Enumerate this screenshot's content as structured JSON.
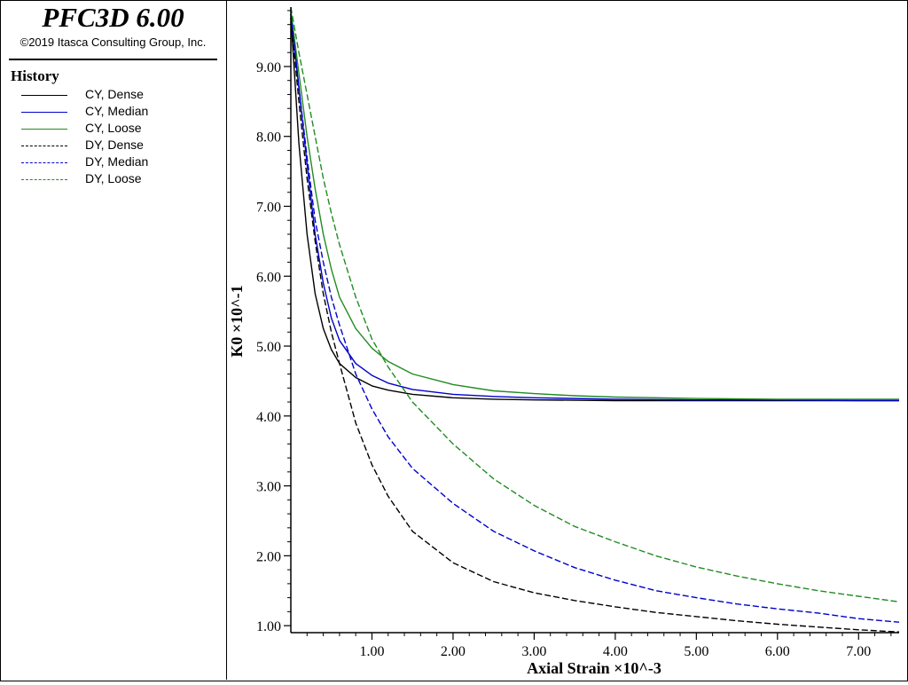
{
  "app": {
    "title": "PFC3D 6.00",
    "copyright": "©2019 Itasca Consulting Group, Inc."
  },
  "legend": {
    "heading": "History",
    "items": [
      {
        "label": "CY, Dense",
        "color": "#000000",
        "style": "solid"
      },
      {
        "label": "CY, Median",
        "color": "#0000cc",
        "style": "solid"
      },
      {
        "label": "CY, Loose",
        "color": "#228b22",
        "style": "solid"
      },
      {
        "label": "DY, Dense",
        "color": "#000000",
        "style": "dashed"
      },
      {
        "label": "DY, Median",
        "color": "#0000cc",
        "style": "dashed"
      },
      {
        "label": "DY, Loose",
        "color": "#228b22",
        "style": "dashed"
      }
    ]
  },
  "chart_data": {
    "type": "line",
    "title": "",
    "xlabel": "Axial Strain ×10^-3",
    "ylabel": "K0 ×10^-1",
    "xlim": [
      0.0,
      7.5
    ],
    "ylim": [
      0.9,
      9.85
    ],
    "xticks": [
      1,
      2,
      3,
      4,
      5,
      6,
      7
    ],
    "xtick_labels": [
      "1.00",
      "2.00",
      "3.00",
      "4.00",
      "5.00",
      "6.00",
      "7.00"
    ],
    "yticks": [
      1,
      2,
      3,
      4,
      5,
      6,
      7,
      8,
      9
    ],
    "ytick_labels": [
      "1.00",
      "2.00",
      "3.00",
      "4.00",
      "5.00",
      "6.00",
      "7.00",
      "8.00",
      "9.00"
    ],
    "grid": false,
    "legend_position": "left-panel",
    "series": [
      {
        "name": "CY, Dense",
        "color": "#000000",
        "dash": "solid",
        "x": [
          0.0,
          0.05,
          0.1,
          0.2,
          0.3,
          0.4,
          0.5,
          0.6,
          0.8,
          1.0,
          1.2,
          1.5,
          2.0,
          2.5,
          3.0,
          4.0,
          5.0,
          6.0,
          7.0,
          7.5
        ],
        "y": [
          9.7,
          8.8,
          7.9,
          6.6,
          5.75,
          5.25,
          4.95,
          4.75,
          4.55,
          4.43,
          4.37,
          4.31,
          4.26,
          4.24,
          4.23,
          4.22,
          4.22,
          4.22,
          4.22,
          4.22
        ]
      },
      {
        "name": "CY, Median",
        "color": "#0000cc",
        "dash": "solid",
        "x": [
          0.0,
          0.1,
          0.2,
          0.3,
          0.4,
          0.5,
          0.6,
          0.8,
          1.0,
          1.2,
          1.5,
          2.0,
          2.5,
          3.0,
          4.0,
          5.0,
          6.0,
          7.0,
          7.5
        ],
        "y": [
          9.75,
          8.7,
          7.6,
          6.6,
          5.9,
          5.4,
          5.08,
          4.75,
          4.58,
          4.47,
          4.38,
          4.31,
          4.28,
          4.26,
          4.24,
          4.23,
          4.23,
          4.22,
          4.22
        ]
      },
      {
        "name": "CY, Loose",
        "color": "#228b22",
        "dash": "solid",
        "x": [
          0.0,
          0.1,
          0.2,
          0.3,
          0.4,
          0.5,
          0.6,
          0.8,
          1.0,
          1.2,
          1.5,
          2.0,
          2.5,
          3.0,
          3.5,
          4.0,
          5.0,
          6.0,
          7.0,
          7.5
        ],
        "y": [
          9.8,
          8.9,
          8.0,
          7.25,
          6.6,
          6.1,
          5.7,
          5.25,
          4.97,
          4.78,
          4.6,
          4.45,
          4.36,
          4.32,
          4.29,
          4.27,
          4.25,
          4.24,
          4.24,
          4.24
        ]
      },
      {
        "name": "DY, Dense",
        "color": "#000000",
        "dash": "dashed",
        "x": [
          0.0,
          0.1,
          0.2,
          0.3,
          0.4,
          0.5,
          0.6,
          0.8,
          1.0,
          1.2,
          1.5,
          2.0,
          2.5,
          3.0,
          3.5,
          4.0,
          4.5,
          5.0,
          5.5,
          6.0,
          6.5,
          7.0,
          7.5
        ],
        "y": [
          9.7,
          8.5,
          7.4,
          6.5,
          5.75,
          5.2,
          4.75,
          3.9,
          3.3,
          2.85,
          2.35,
          1.9,
          1.63,
          1.47,
          1.36,
          1.27,
          1.19,
          1.13,
          1.07,
          1.02,
          0.98,
          0.94,
          0.91
        ]
      },
      {
        "name": "DY, Median",
        "color": "#0000cc",
        "dash": "dashed",
        "x": [
          0.0,
          0.1,
          0.2,
          0.3,
          0.4,
          0.5,
          0.6,
          0.8,
          1.0,
          1.2,
          1.5,
          2.0,
          2.5,
          3.0,
          3.5,
          4.0,
          4.5,
          5.0,
          5.5,
          6.0,
          6.5,
          7.0,
          7.5
        ],
        "y": [
          9.75,
          8.7,
          7.7,
          6.8,
          6.2,
          5.7,
          5.3,
          4.6,
          4.1,
          3.7,
          3.25,
          2.75,
          2.35,
          2.07,
          1.83,
          1.65,
          1.5,
          1.4,
          1.31,
          1.24,
          1.18,
          1.1,
          1.05
        ]
      },
      {
        "name": "DY, Loose",
        "color": "#228b22",
        "dash": "dashed",
        "x": [
          0.0,
          0.1,
          0.2,
          0.3,
          0.4,
          0.5,
          0.6,
          0.8,
          1.0,
          1.2,
          1.5,
          2.0,
          2.5,
          3.0,
          3.5,
          4.0,
          4.5,
          5.0,
          5.5,
          6.0,
          6.5,
          7.0,
          7.5
        ],
        "y": [
          9.85,
          9.2,
          8.6,
          8.0,
          7.4,
          6.9,
          6.45,
          5.7,
          5.1,
          4.7,
          4.2,
          3.6,
          3.1,
          2.72,
          2.42,
          2.2,
          2.0,
          1.84,
          1.71,
          1.6,
          1.5,
          1.42,
          1.34
        ]
      }
    ]
  }
}
